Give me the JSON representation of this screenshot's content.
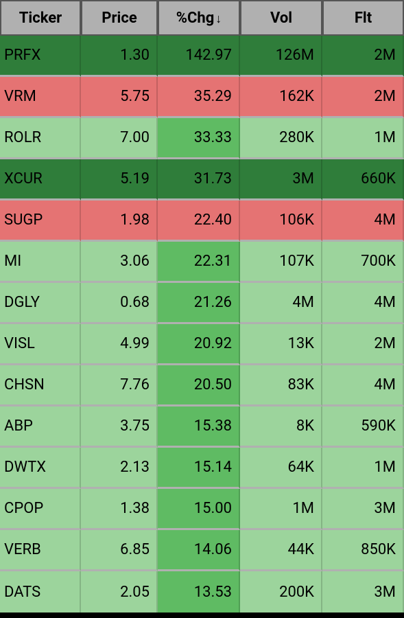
{
  "table": {
    "type": "table",
    "background_color": "#b0b0b0",
    "header_bg": "#b0b0b0",
    "header_fg": "#000000",
    "header_border": "#555555",
    "row_border_color": "#b0b0b0",
    "header_fontsize": 22,
    "cell_fontsize": 22,
    "columns": [
      {
        "key": "ticker",
        "label": "Ticker",
        "align": "left",
        "sortable": true,
        "sorted": false,
        "sort_dir": ""
      },
      {
        "key": "price",
        "label": "Price",
        "align": "right",
        "sortable": true,
        "sorted": false,
        "sort_dir": ""
      },
      {
        "key": "chg",
        "label": "%Chg",
        "align": "right",
        "sortable": true,
        "sorted": true,
        "sort_dir": "down"
      },
      {
        "key": "vol",
        "label": "Vol",
        "align": "right",
        "sortable": true,
        "sorted": false,
        "sort_dir": ""
      },
      {
        "key": "flt",
        "label": "Flt",
        "align": "right",
        "sortable": true,
        "sorted": false,
        "sort_dir": ""
      }
    ],
    "colors": {
      "dark_green": "#2f7d3a",
      "mid_green": "#5fbb63",
      "light_green": "#9cd49c",
      "red": "#e57373"
    },
    "rows": [
      {
        "ticker": "PRFX",
        "price": "1.30",
        "chg": "142.97",
        "vol": "126M",
        "flt": "2M",
        "cell_colors": [
          "dark_green",
          "dark_green",
          "dark_green",
          "dark_green",
          "dark_green"
        ],
        "fg": "#000000"
      },
      {
        "ticker": "VRM",
        "price": "5.75",
        "chg": "35.29",
        "vol": "162K",
        "flt": "2M",
        "cell_colors": [
          "red",
          "red",
          "red",
          "red",
          "red"
        ],
        "fg": "#000000"
      },
      {
        "ticker": "ROLR",
        "price": "7.00",
        "chg": "33.33",
        "vol": "280K",
        "flt": "1M",
        "cell_colors": [
          "light_green",
          "light_green",
          "mid_green",
          "light_green",
          "light_green"
        ],
        "fg": "#000000"
      },
      {
        "ticker": "XCUR",
        "price": "5.19",
        "chg": "31.73",
        "vol": "3M",
        "flt": "660K",
        "cell_colors": [
          "dark_green",
          "dark_green",
          "dark_green",
          "dark_green",
          "dark_green"
        ],
        "fg": "#000000"
      },
      {
        "ticker": "SUGP",
        "price": "1.98",
        "chg": "22.40",
        "vol": "106K",
        "flt": "4M",
        "cell_colors": [
          "red",
          "red",
          "red",
          "red",
          "red"
        ],
        "fg": "#000000"
      },
      {
        "ticker": "MI",
        "price": "3.06",
        "chg": "22.31",
        "vol": "107K",
        "flt": "700K",
        "cell_colors": [
          "light_green",
          "light_green",
          "mid_green",
          "light_green",
          "light_green"
        ],
        "fg": "#000000"
      },
      {
        "ticker": "DGLY",
        "price": "0.68",
        "chg": "21.26",
        "vol": "4M",
        "flt": "4M",
        "cell_colors": [
          "light_green",
          "light_green",
          "mid_green",
          "light_green",
          "light_green"
        ],
        "fg": "#000000"
      },
      {
        "ticker": "VISL",
        "price": "4.99",
        "chg": "20.92",
        "vol": "13K",
        "flt": "2M",
        "cell_colors": [
          "light_green",
          "light_green",
          "mid_green",
          "light_green",
          "light_green"
        ],
        "fg": "#000000"
      },
      {
        "ticker": "CHSN",
        "price": "7.76",
        "chg": "20.50",
        "vol": "83K",
        "flt": "4M",
        "cell_colors": [
          "light_green",
          "light_green",
          "mid_green",
          "light_green",
          "light_green"
        ],
        "fg": "#000000"
      },
      {
        "ticker": "ABP",
        "price": "3.75",
        "chg": "15.38",
        "vol": "8K",
        "flt": "590K",
        "cell_colors": [
          "light_green",
          "light_green",
          "mid_green",
          "light_green",
          "light_green"
        ],
        "fg": "#000000"
      },
      {
        "ticker": "DWTX",
        "price": "2.13",
        "chg": "15.14",
        "vol": "64K",
        "flt": "1M",
        "cell_colors": [
          "light_green",
          "light_green",
          "mid_green",
          "light_green",
          "light_green"
        ],
        "fg": "#000000"
      },
      {
        "ticker": "CPOP",
        "price": "1.38",
        "chg": "15.00",
        "vol": "1M",
        "flt": "3M",
        "cell_colors": [
          "light_green",
          "light_green",
          "mid_green",
          "light_green",
          "light_green"
        ],
        "fg": "#000000"
      },
      {
        "ticker": "VERB",
        "price": "6.85",
        "chg": "14.06",
        "vol": "44K",
        "flt": "850K",
        "cell_colors": [
          "light_green",
          "light_green",
          "mid_green",
          "light_green",
          "light_green"
        ],
        "fg": "#000000"
      },
      {
        "ticker": "DATS",
        "price": "2.05",
        "chg": "13.53",
        "vol": "200K",
        "flt": "3M",
        "cell_colors": [
          "light_green",
          "light_green",
          "mid_green",
          "light_green",
          "light_green"
        ],
        "fg": "#000000"
      }
    ]
  }
}
